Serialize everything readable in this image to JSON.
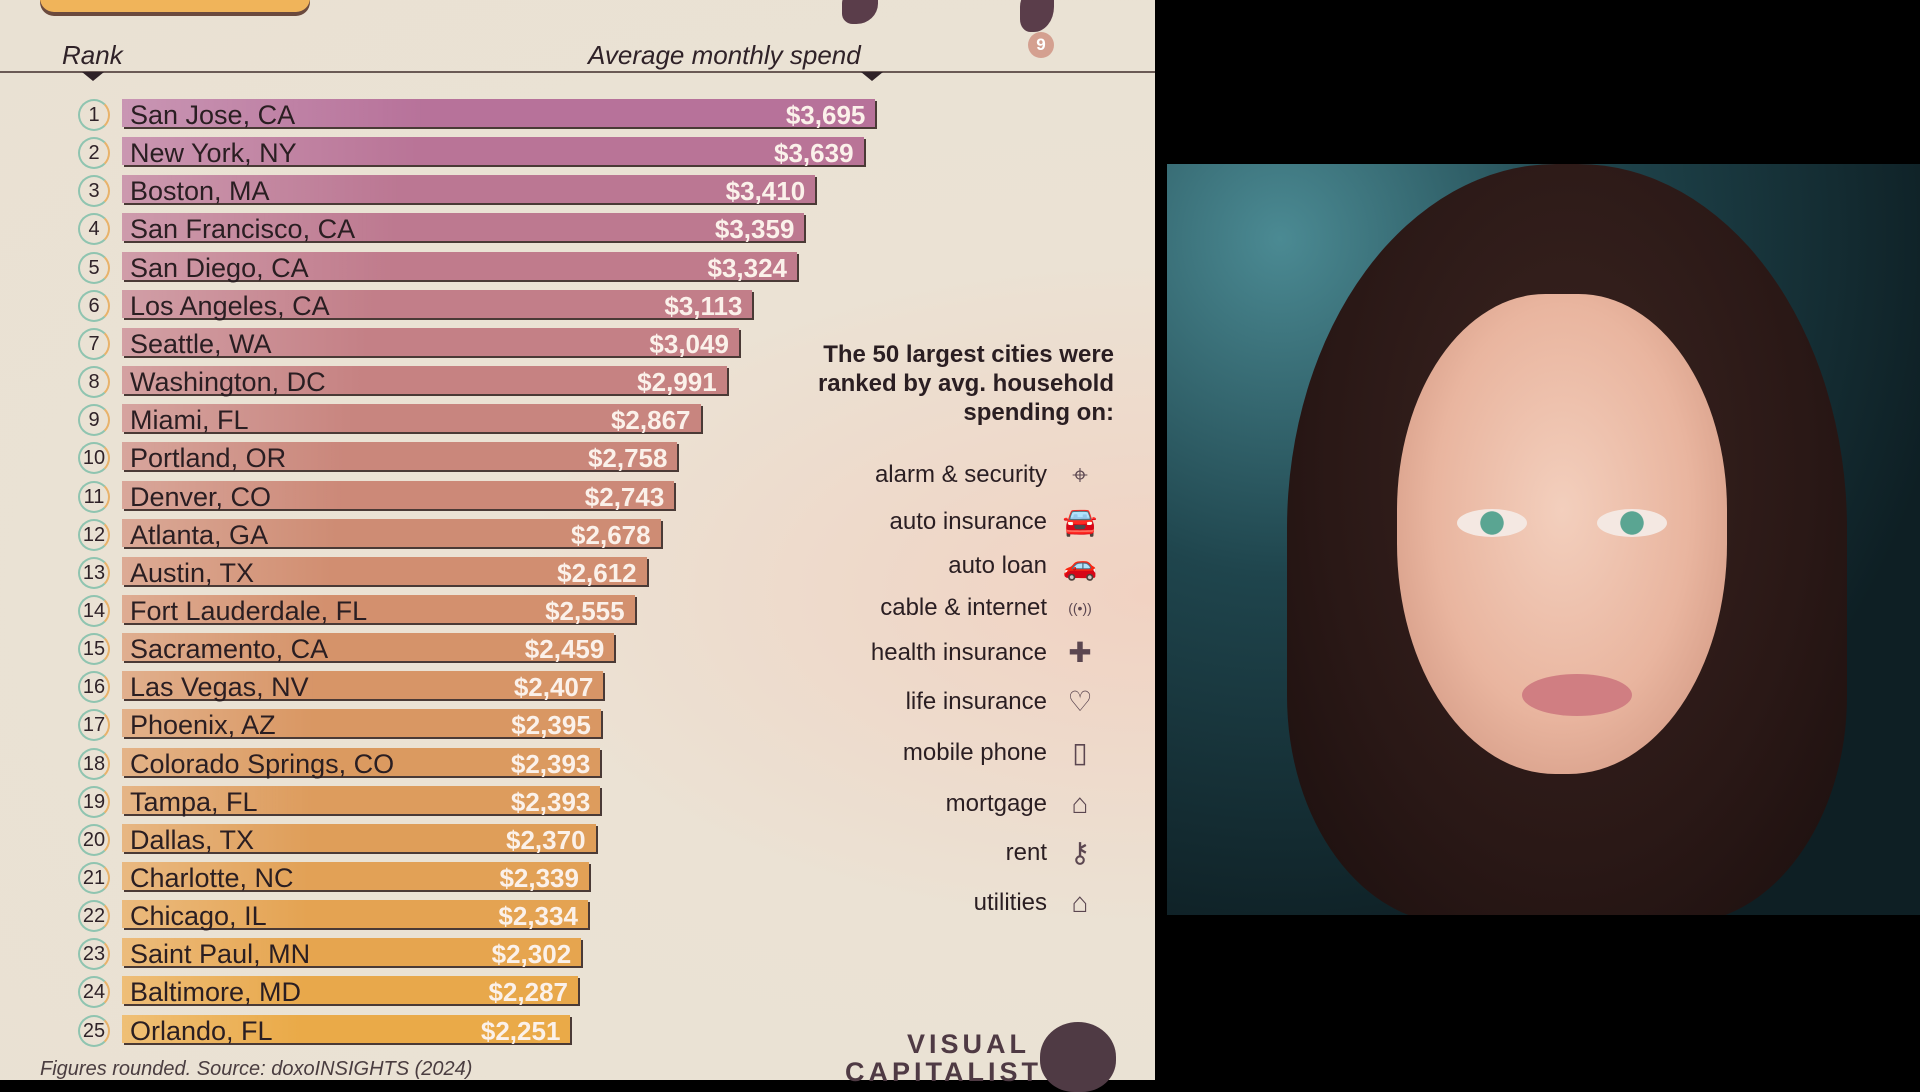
{
  "headers": {
    "rank": "Rank",
    "spend": "Average monthly spend"
  },
  "chart_data": {
    "type": "bar",
    "orientation": "horizontal",
    "xlabel": "Average monthly spend",
    "ylabel": "Rank",
    "categories": [
      "San Jose, CA",
      "New York, NY",
      "Boston, MA",
      "San Francisco, CA",
      "San Diego, CA",
      "Los Angeles, CA",
      "Seattle, WA",
      "Washington, DC",
      "Miami, FL",
      "Portland, OR",
      "Denver, CO",
      "Atlanta, GA",
      "Austin, TX",
      "Fort Lauderdale, FL",
      "Sacramento, CA",
      "Las Vegas, NV",
      "Phoenix, AZ",
      "Colorado Springs, CO",
      "Tampa, FL",
      "Dallas, TX",
      "Charlotte, NC",
      "Chicago, IL",
      "Saint Paul, MN",
      "Baltimore, MD",
      "Orlando, FL"
    ],
    "values": [
      3695,
      3639,
      3410,
      3359,
      3324,
      3113,
      3049,
      2991,
      2867,
      2758,
      2743,
      2678,
      2612,
      2555,
      2459,
      2407,
      2395,
      2393,
      2393,
      2370,
      2339,
      2334,
      2302,
      2287,
      2251
    ],
    "labels": [
      "$3,695",
      "$3,639",
      "$3,410",
      "$3,359",
      "$3,324",
      "$3,113",
      "$3,049",
      "$2,991",
      "$2,867",
      "$2,758",
      "$2,743",
      "$2,678",
      "$2,612",
      "$2,555",
      "$2,459",
      "$2,407",
      "$2,395",
      "$2,393",
      "$2,393",
      "$2,370",
      "$2,339",
      "$2,334",
      "$2,302",
      "$2,287",
      "$2,251"
    ],
    "colors": {
      "top": "#b7729a",
      "bottom": "#eaaa48"
    }
  },
  "note": "The 50 largest cities were ranked by avg. household spending on:",
  "legend": [
    {
      "label": "alarm & security",
      "icon": "security-camera-icon",
      "glyph": "⌖"
    },
    {
      "label": "auto insurance",
      "icon": "car-lock-icon",
      "glyph": "🚘"
    },
    {
      "label": "auto loan",
      "icon": "car-dollar-icon",
      "glyph": "🚗"
    },
    {
      "label": "cable & internet",
      "icon": "wifi-icon",
      "glyph": "((•))"
    },
    {
      "label": "health insurance",
      "icon": "hands-medical-icon",
      "glyph": "✚"
    },
    {
      "label": "life insurance",
      "icon": "hands-heart-icon",
      "glyph": "♡"
    },
    {
      "label": "mobile phone",
      "icon": "mobile-phone-icon",
      "glyph": "▯"
    },
    {
      "label": "mortgage",
      "icon": "house-percent-icon",
      "glyph": "⌂"
    },
    {
      "label": "rent",
      "icon": "keys-icon",
      "glyph": "⚷"
    },
    {
      "label": "utilities",
      "icon": "house-utilities-icon",
      "glyph": "⌂"
    }
  ],
  "footer": "Figures rounded. Source: doxoINSIGHTS (2024)",
  "logo": "VISUAL CAPITALIST",
  "map_badge": "9"
}
